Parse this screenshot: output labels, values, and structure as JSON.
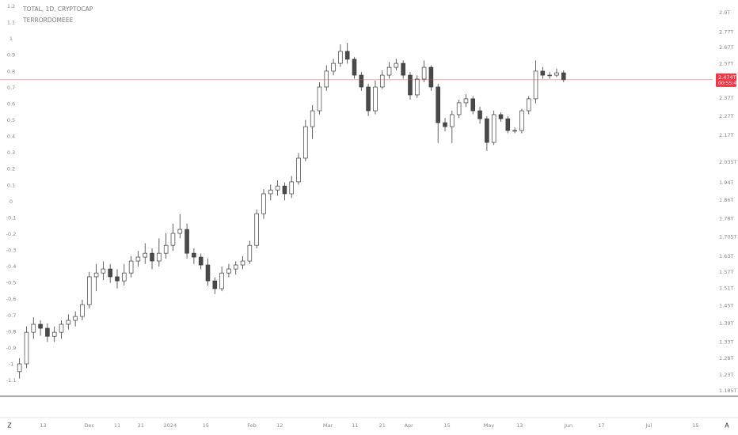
{
  "chart_data": {
    "type": "candlestick",
    "title": "TOTAL, 1D, CRYPTOCAP",
    "subtitle": "TERRORDOMEEE",
    "open": [
      1.24,
      1.263,
      1.361,
      1.387,
      1.374,
      1.348,
      1.361,
      1.387,
      1.4,
      1.413,
      1.453,
      1.552,
      1.566,
      1.581,
      1.552,
      1.537,
      1.566,
      1.611,
      1.626,
      1.641,
      1.611,
      1.641,
      1.672,
      1.72,
      1.736,
      1.641,
      1.626,
      1.596,
      1.537,
      1.509,
      1.566,
      1.581,
      1.596,
      1.611,
      1.672,
      1.802,
      1.889,
      1.906,
      1.924,
      1.889,
      1.943,
      2.055,
      2.214,
      2.299,
      2.432,
      2.525,
      2.572,
      2.646,
      2.597,
      2.501,
      2.432,
      2.299,
      2.432,
      2.501,
      2.548,
      2.572,
      2.501,
      2.387,
      2.478,
      2.548,
      2.432,
      2.235,
      2.214,
      2.278,
      2.343,
      2.365,
      2.299,
      2.256,
      2.133,
      2.278,
      2.256,
      2.194,
      2.194,
      2.299,
      2.365,
      2.525,
      2.501,
      2.501,
      2.515
    ],
    "high": [
      1.28,
      1.38,
      1.41,
      1.4,
      1.39,
      1.38,
      1.4,
      1.42,
      1.43,
      1.47,
      1.57,
      1.6,
      1.61,
      1.6,
      1.58,
      1.6,
      1.63,
      1.65,
      1.68,
      1.66,
      1.7,
      1.72,
      1.76,
      1.8,
      1.76,
      1.66,
      1.64,
      1.62,
      1.55,
      1.59,
      1.6,
      1.61,
      1.63,
      1.69,
      1.82,
      1.91,
      1.93,
      1.95,
      1.94,
      1.97,
      2.08,
      2.25,
      2.33,
      2.46,
      2.56,
      2.6,
      2.69,
      2.7,
      2.61,
      2.52,
      2.45,
      2.47,
      2.53,
      2.58,
      2.6,
      2.59,
      2.52,
      2.5,
      2.59,
      2.56,
      2.45,
      2.26,
      2.3,
      2.36,
      2.39,
      2.38,
      2.32,
      2.27,
      2.3,
      2.29,
      2.27,
      2.21,
      2.31,
      2.38,
      2.59,
      2.55,
      2.52,
      2.54,
      2.53
    ],
    "low": [
      1.22,
      1.25,
      1.34,
      1.35,
      1.33,
      1.33,
      1.34,
      1.37,
      1.38,
      1.4,
      1.44,
      1.5,
      1.54,
      1.53,
      1.51,
      1.52,
      1.55,
      1.59,
      1.6,
      1.58,
      1.59,
      1.62,
      1.65,
      1.7,
      1.62,
      1.6,
      1.58,
      1.52,
      1.49,
      1.5,
      1.55,
      1.56,
      1.58,
      1.6,
      1.66,
      1.78,
      1.86,
      1.88,
      1.86,
      1.87,
      1.93,
      2.04,
      2.15,
      2.28,
      2.41,
      2.5,
      2.55,
      2.57,
      2.48,
      2.41,
      2.27,
      2.28,
      2.42,
      2.48,
      2.53,
      2.48,
      2.36,
      2.37,
      2.46,
      2.41,
      2.13,
      2.19,
      2.13,
      2.26,
      2.32,
      2.28,
      2.23,
      2.09,
      2.12,
      2.24,
      2.18,
      2.18,
      2.18,
      2.28,
      2.34,
      2.48,
      2.48,
      2.49,
      2.46
    ],
    "close": [
      1.263,
      1.361,
      1.387,
      1.374,
      1.348,
      1.361,
      1.387,
      1.4,
      1.413,
      1.453,
      1.552,
      1.566,
      1.581,
      1.552,
      1.537,
      1.566,
      1.611,
      1.626,
      1.641,
      1.611,
      1.641,
      1.672,
      1.72,
      1.736,
      1.641,
      1.626,
      1.596,
      1.537,
      1.509,
      1.566,
      1.581,
      1.596,
      1.611,
      1.672,
      1.802,
      1.889,
      1.906,
      1.924,
      1.889,
      1.943,
      2.055,
      2.214,
      2.299,
      2.432,
      2.525,
      2.572,
      2.646,
      2.597,
      2.501,
      2.432,
      2.299,
      2.432,
      2.501,
      2.548,
      2.572,
      2.501,
      2.387,
      2.478,
      2.548,
      2.432,
      2.235,
      2.214,
      2.278,
      2.343,
      2.365,
      2.299,
      2.256,
      2.133,
      2.278,
      2.256,
      2.194,
      2.194,
      2.299,
      2.365,
      2.525,
      2.501,
      2.501,
      2.515,
      2.474
    ],
    "up_color": "#ffffff",
    "down_color": "#4a4a4a",
    "outline_color": "#3a3a3a",
    "xlim": [
      -2.8,
      98.8
    ],
    "xticks": [
      {
        "value": 3.4,
        "label": "13"
      },
      {
        "value": 10,
        "label": "Dec"
      },
      {
        "value": 14,
        "label": "11"
      },
      {
        "value": 17.4,
        "label": "21"
      },
      {
        "value": 21.6,
        "label": "2024"
      },
      {
        "value": 26.7,
        "label": "15"
      },
      {
        "value": 33.3,
        "label": "Feb"
      },
      {
        "value": 37.3,
        "label": "12"
      },
      {
        "value": 44.2,
        "label": "Mar"
      },
      {
        "value": 48.1,
        "label": "11"
      },
      {
        "value": 52,
        "label": "21"
      },
      {
        "value": 55.8,
        "label": "Apr"
      },
      {
        "value": 61.3,
        "label": "15"
      },
      {
        "value": 67.3,
        "label": "May"
      },
      {
        "value": 71.7,
        "label": "13"
      },
      {
        "value": 78.7,
        "label": "Jun"
      },
      {
        "value": 83.4,
        "label": "17"
      },
      {
        "value": 90.2,
        "label": "Jul"
      },
      {
        "value": 96.9,
        "label": "15"
      }
    ],
    "ylim": [
      1.239,
      -1.192
    ],
    "yticks": [
      1.2,
      1.1,
      1,
      0.9,
      0.8,
      0.7,
      0.6,
      0.5,
      0.4,
      0.3,
      0.2,
      0.1,
      0,
      -0.1,
      -0.2,
      -0.3,
      -0.4,
      -0.5,
      -0.6,
      -0.7,
      -0.8,
      -0.9,
      -1,
      -1.1
    ],
    "y2lim": [
      2.988,
      1.172
    ],
    "y2log": true,
    "y2ticks": [
      {
        "value": 2.9,
        "label": "2.9T"
      },
      {
        "value": 2.77,
        "label": "2.77T"
      },
      {
        "value": 2.67,
        "label": "2.67T"
      },
      {
        "value": 2.57,
        "label": "2.57T"
      },
      {
        "value": 2.37,
        "label": "2.37T"
      },
      {
        "value": 2.27,
        "label": "2.27T"
      },
      {
        "value": 2.17,
        "label": "2.17T"
      },
      {
        "value": 2.035,
        "label": "2.035T"
      },
      {
        "value": 1.94,
        "label": "1.94T"
      },
      {
        "value": 1.86,
        "label": "1.86T"
      },
      {
        "value": 1.78,
        "label": "1.78T"
      },
      {
        "value": 1.705,
        "label": "1.705T"
      },
      {
        "value": 1.63,
        "label": "1.63T"
      },
      {
        "value": 1.57,
        "label": "1.57T"
      },
      {
        "value": 1.51,
        "label": "1.51T"
      },
      {
        "value": 1.45,
        "label": "1.45T"
      },
      {
        "value": 1.39,
        "label": "1.39T"
      },
      {
        "value": 1.33,
        "label": "1.33T"
      },
      {
        "value": 1.28,
        "label": "1.28T"
      },
      {
        "value": 1.23,
        "label": "1.23T"
      },
      {
        "value": 1.185,
        "label": "1.185T"
      }
    ],
    "last_price": 2.474,
    "last_price_label": "2.474T",
    "countdown": "00:55:42",
    "last_price_color": "#f23645"
  },
  "ui": {
    "left_button": "Z",
    "right_button": "A"
  }
}
